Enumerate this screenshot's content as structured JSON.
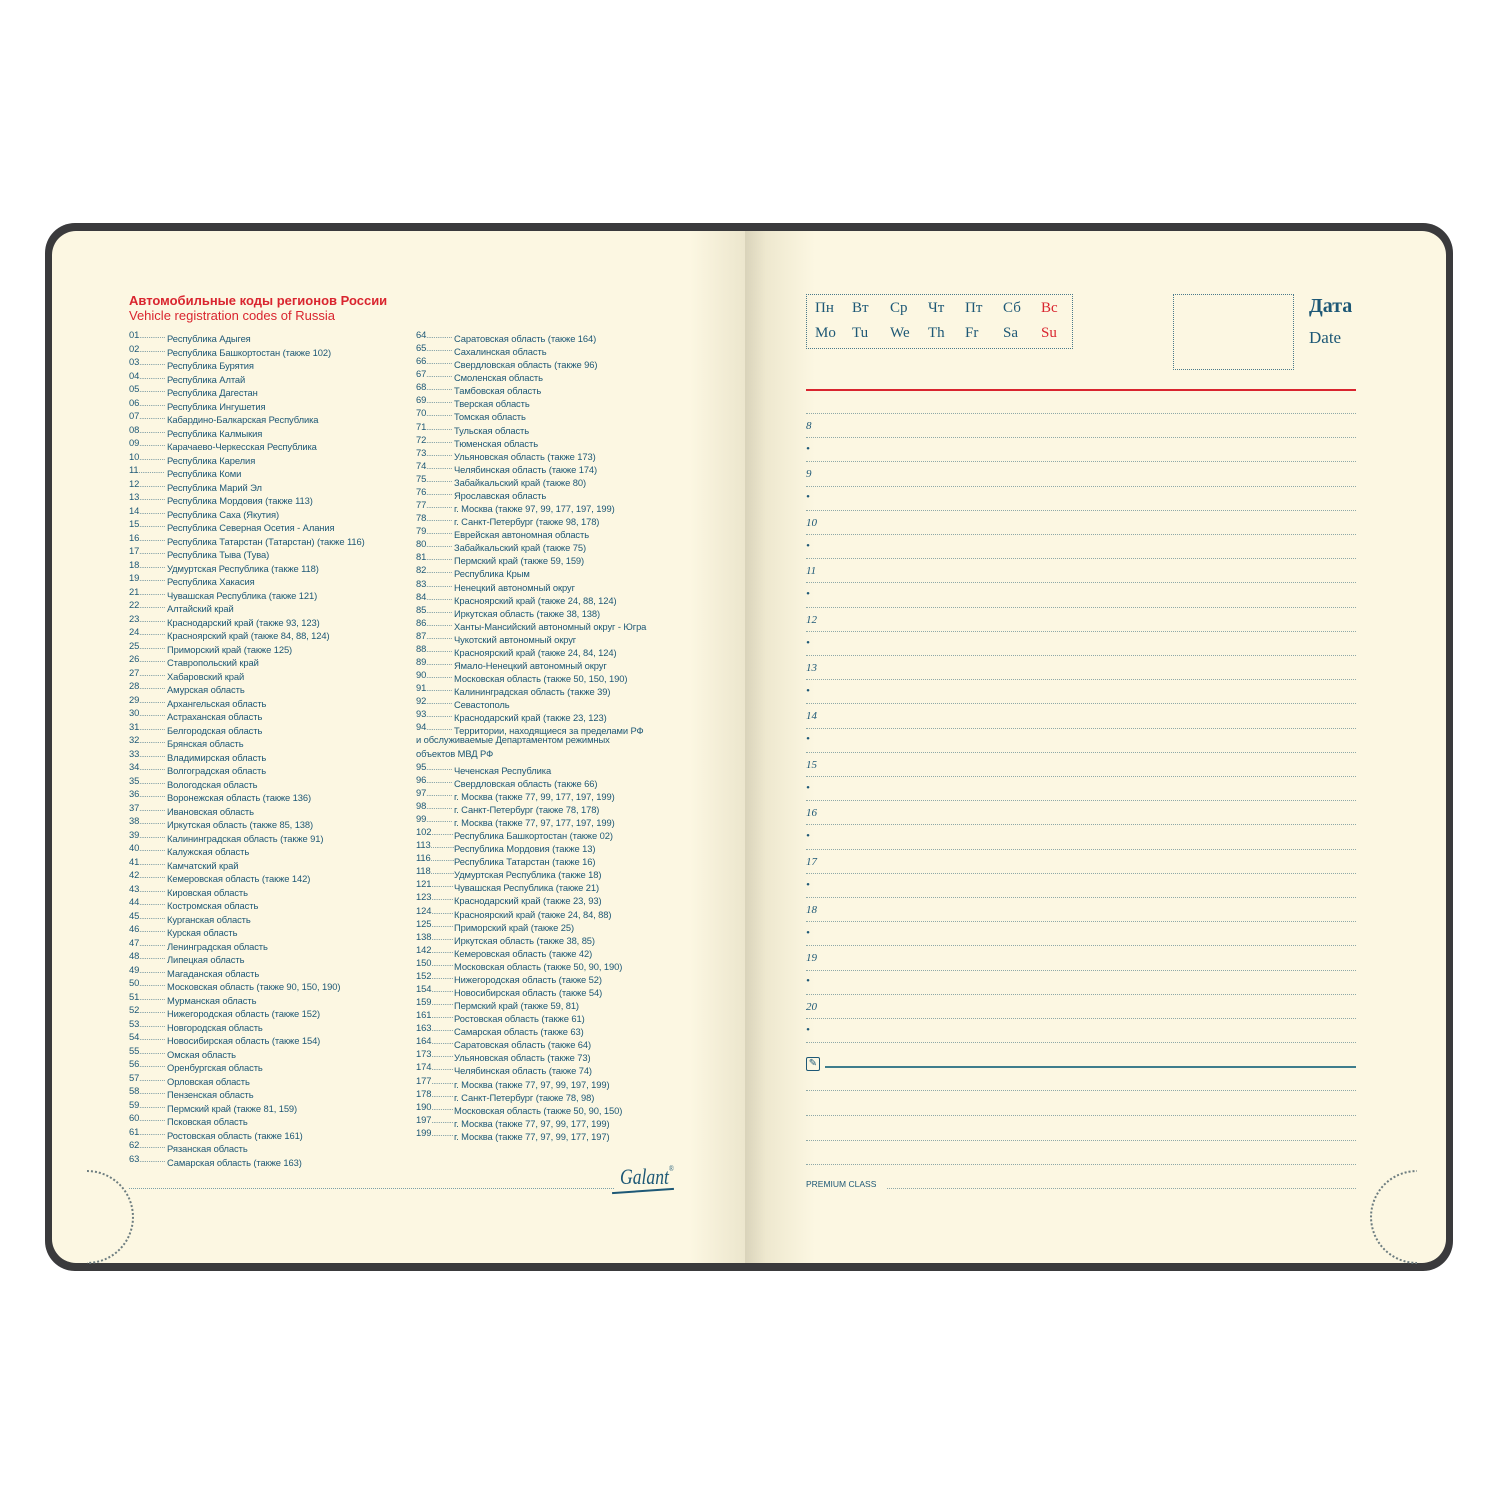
{
  "left_page": {
    "title_ru": "Автомобильные коды регионов России",
    "title_en": "Vehicle registration codes of Russia",
    "column1": [
      [
        "01",
        "Республика Адыгея"
      ],
      [
        "02",
        "Республика Башкортостан (также 102)"
      ],
      [
        "03",
        "Республика Бурятия"
      ],
      [
        "04",
        "Республика Алтай"
      ],
      [
        "05",
        "Республика Дагестан"
      ],
      [
        "06",
        "Республика Ингушетия"
      ],
      [
        "07",
        "Кабардино-Балкарская Республика"
      ],
      [
        "08",
        "Республика Калмыкия"
      ],
      [
        "09",
        "Карачаево-Черкесская Республика"
      ],
      [
        "10",
        "Республика Карелия"
      ],
      [
        "11",
        "Республика Коми"
      ],
      [
        "12",
        "Республика Марий Эл"
      ],
      [
        "13",
        "Республика Мордовия (также 113)"
      ],
      [
        "14",
        "Республика Саха (Якутия)"
      ],
      [
        "15",
        "Республика Северная Осетия - Алания"
      ],
      [
        "16",
        "Республика Татарстан (Татарстан) (также 116)"
      ],
      [
        "17",
        "Республика Тыва (Тува)"
      ],
      [
        "18",
        "Удмуртская Республика (также 118)"
      ],
      [
        "19",
        "Республика Хакасия"
      ],
      [
        "21",
        "Чувашская Республика (также 121)"
      ],
      [
        "22",
        "Алтайский край"
      ],
      [
        "23",
        "Краснодарский край (также 93, 123)"
      ],
      [
        "24",
        "Красноярский край (также 84, 88, 124)"
      ],
      [
        "25",
        "Приморский край (также 125)"
      ],
      [
        "26",
        "Ставропольский край"
      ],
      [
        "27",
        "Хабаровский край"
      ],
      [
        "28",
        "Амурская область"
      ],
      [
        "29",
        "Архангельская область"
      ],
      [
        "30",
        "Астраханская область"
      ],
      [
        "31",
        "Белгородская область"
      ],
      [
        "32",
        "Брянская область"
      ],
      [
        "33",
        "Владимирская область"
      ],
      [
        "34",
        "Волгоградская область"
      ],
      [
        "35",
        "Вологодская область"
      ],
      [
        "36",
        "Воронежская область (также 136)"
      ],
      [
        "37",
        "Ивановская область"
      ],
      [
        "38",
        "Иркутская область (также 85, 138)"
      ],
      [
        "39",
        "Калининградская область (также 91)"
      ],
      [
        "40",
        "Калужская область"
      ],
      [
        "41",
        "Камчатский край"
      ],
      [
        "42",
        "Кемеровская область (также 142)"
      ],
      [
        "43",
        "Кировская область"
      ],
      [
        "44",
        "Костромская область"
      ],
      [
        "45",
        "Курганская область"
      ],
      [
        "46",
        "Курская область"
      ],
      [
        "47",
        "Ленинградская область"
      ],
      [
        "48",
        "Липецкая область"
      ],
      [
        "49",
        "Магаданская область"
      ],
      [
        "50",
        "Московская область (также 90, 150, 190)"
      ],
      [
        "51",
        "Мурманская область"
      ],
      [
        "52",
        "Нижегородская область (также 152)"
      ],
      [
        "53",
        "Новгородская область"
      ],
      [
        "54",
        "Новосибирская область (также 154)"
      ],
      [
        "55",
        "Омская область"
      ],
      [
        "56",
        "Оренбургская область"
      ],
      [
        "57",
        "Орловская область"
      ],
      [
        "58",
        "Пензенская область"
      ],
      [
        "59",
        "Пермский край (также 81, 159)"
      ],
      [
        "60",
        "Псковская область"
      ],
      [
        "61",
        "Ростовская область (также 161)"
      ],
      [
        "62",
        "Рязанская область"
      ],
      [
        "63",
        "Самарская область (также 163)"
      ]
    ],
    "column2": [
      [
        "64",
        "Саратовская область (также 164)"
      ],
      [
        "65",
        "Сахалинская область"
      ],
      [
        "66",
        "Свердловская область (также 96)"
      ],
      [
        "67",
        "Смоленская область"
      ],
      [
        "68",
        "Тамбовская область"
      ],
      [
        "69",
        "Тверская область"
      ],
      [
        "70",
        "Томская область"
      ],
      [
        "71",
        "Тульская область"
      ],
      [
        "72",
        "Тюменская область"
      ],
      [
        "73",
        "Ульяновская область (также 173)"
      ],
      [
        "74",
        "Челябинская область (также 174)"
      ],
      [
        "75",
        "Забайкальский край (также 80)"
      ],
      [
        "76",
        "Ярославская область"
      ],
      [
        "77",
        "г. Москва (также 97, 99, 177, 197, 199)"
      ],
      [
        "78",
        "г. Санкт-Петербург (также 98, 178)"
      ],
      [
        "79",
        "Еврейская автономная область"
      ],
      [
        "80",
        "Забайкальский край (также 75)"
      ],
      [
        "81",
        "Пермский край (также 59, 159)"
      ],
      [
        "82",
        "Республика Крым"
      ],
      [
        "83",
        "Ненецкий автономный округ"
      ],
      [
        "84",
        "Красноярский край (также 24, 88, 124)"
      ],
      [
        "85",
        "Иркутская область (также 38, 138)"
      ],
      [
        "86",
        "Ханты-Мансийский автономный округ - Югра"
      ],
      [
        "87",
        "Чукотский автономный округ"
      ],
      [
        "88",
        "Красноярский край (также 24, 84, 124)"
      ],
      [
        "89",
        "Ямало-Ненецкий автономный округ"
      ],
      [
        "90",
        "Московская область (также 50, 150, 190)"
      ],
      [
        "91",
        "Калининградская область (также 39)"
      ],
      [
        "92",
        "Севастополь"
      ],
      [
        "93",
        "Краснодарский край (также 23, 123)"
      ],
      [
        "94",
        "Территории, находящиеся за пределами РФ",
        "и обслуживаемые Департаментом режимных",
        "объектов МВД РФ"
      ],
      [
        "95",
        "Чеченская Республика"
      ],
      [
        "96",
        "Свердловская область (также 66)"
      ],
      [
        "97",
        "г. Москва (также 77, 99, 177, 197, 199)"
      ],
      [
        "98",
        "г. Санкт-Петербург (также 78, 178)"
      ],
      [
        "99",
        "г. Москва (также 77, 97, 177, 197, 199)"
      ],
      [
        "102",
        "Республика Башкортостан (также 02)"
      ],
      [
        "113",
        "Республика Мордовия (также 13)"
      ],
      [
        "116",
        "Республика Татарстан (также 16)"
      ],
      [
        "118",
        "Удмуртская Республика (также 18)"
      ],
      [
        "121",
        "Чувашская Республика (также 21)"
      ],
      [
        "123",
        "Краснодарский край (также 23, 93)"
      ],
      [
        "124",
        "Красноярский край (также 24, 84, 88)"
      ],
      [
        "125",
        "Приморский край (также 25)"
      ],
      [
        "138",
        "Иркутская область (также 38, 85)"
      ],
      [
        "142",
        "Кемеровская область (также 42)"
      ],
      [
        "150",
        "Московская область (также 50, 90, 190)"
      ],
      [
        "152",
        "Нижегородская область (также 52)"
      ],
      [
        "154",
        "Новосибирская область (также 54)"
      ],
      [
        "159",
        "Пермский край (также 59, 81)"
      ],
      [
        "161",
        "Ростовская область (также 61)"
      ],
      [
        "163",
        "Самарская область (также 63)"
      ],
      [
        "164",
        "Саратовская область (также 64)"
      ],
      [
        "173",
        "Ульяновская область (также 73)"
      ],
      [
        "174",
        "Челябинская область (также 74)"
      ],
      [
        "177",
        "г. Москва (также 77, 97, 99, 197, 199)"
      ],
      [
        "178",
        "г. Санкт-Петербург (также 78, 98)"
      ],
      [
        "190",
        "Московская область (также 50, 90, 150)"
      ],
      [
        "197",
        "г. Москва (также 77, 97, 99, 177, 199)"
      ],
      [
        "199",
        "г. Москва (также 77, 97, 99, 177, 197)"
      ]
    ],
    "logo": "Galant"
  },
  "right_page": {
    "weekdays_ru": [
      "Пн",
      "Вт",
      "Ср",
      "Чт",
      "Пт",
      "Сб",
      "Вс"
    ],
    "weekdays_en": [
      "Mo",
      "Tu",
      "We",
      "Th",
      "Fr",
      "Sa",
      "Su"
    ],
    "date_ru": "Дата",
    "date_en": "Date",
    "hours": [
      "8",
      "9",
      "10",
      "11",
      "12",
      "13",
      "14",
      "15",
      "16",
      "17",
      "18",
      "19",
      "20"
    ],
    "half_marker": "•",
    "notes_icon": "pencil-edit-icon",
    "footer": "PREMIUM CLASS"
  },
  "colors": {
    "text": "#1d5876",
    "accent_red": "#d9252f",
    "paper": "#fcf7e2",
    "cover": "#3a3a3c"
  }
}
